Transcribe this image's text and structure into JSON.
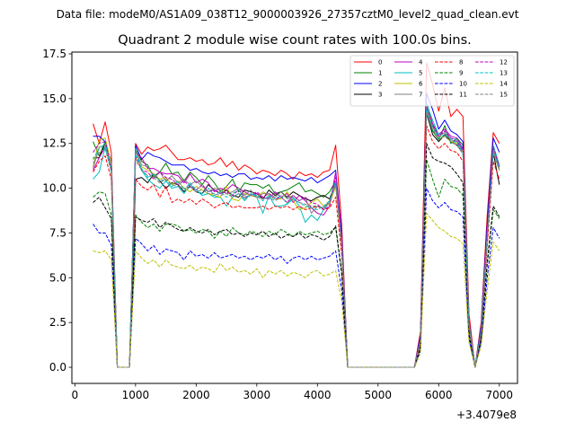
{
  "suptitle": "Data file: modeM0/AS1A09_038T12_9000003926_27357cztM0_level2_quad_clean.evt",
  "chart_data": {
    "type": "line",
    "title": "Quadrant 2 module wise count rates with 100.0s bins.",
    "xlabel": "",
    "ylabel": "",
    "x_offset_label": "+3.4079e8",
    "xlim": [
      -50,
      7300
    ],
    "ylim": [
      -0.9,
      17.6
    ],
    "x_ticks": [
      0,
      1000,
      2000,
      3000,
      4000,
      5000,
      6000,
      7000
    ],
    "y_ticks": [
      "0.0",
      "2.5",
      "5.0",
      "7.5",
      "10.0",
      "12.5",
      "15.0",
      "17.5"
    ],
    "grid": false,
    "legend_position": "top-right",
    "x": [
      300,
      400,
      500,
      600,
      700,
      800,
      900,
      1000,
      1100,
      1200,
      1300,
      1400,
      1500,
      1600,
      1700,
      1800,
      1900,
      2000,
      2100,
      2200,
      2300,
      2400,
      2500,
      2600,
      2700,
      2800,
      2900,
      3000,
      3100,
      3200,
      3300,
      3400,
      3500,
      3600,
      3700,
      3800,
      3900,
      4000,
      4100,
      4200,
      4300,
      4400,
      4500,
      4600,
      4700,
      4800,
      4900,
      5000,
      5100,
      5200,
      5300,
      5400,
      5500,
      5600,
      5700,
      5800,
      5900,
      6000,
      6100,
      6200,
      6300,
      6400,
      6500,
      6600,
      6700,
      6800,
      6900,
      7000
    ],
    "series": [
      {
        "name": "0",
        "color": "#ff0000",
        "dash": "solid",
        "values": [
          13.6,
          12.5,
          13.7,
          12.0,
          0,
          0,
          0,
          12.5,
          11.9,
          12.3,
          12.1,
          12.2,
          12.4,
          12.0,
          11.6,
          11.6,
          11.7,
          11.5,
          11.6,
          11.3,
          11.4,
          11.7,
          11.2,
          11.5,
          11.0,
          11.3,
          11.1,
          10.8,
          11.0,
          10.9,
          10.7,
          11.0,
          10.8,
          10.5,
          10.9,
          10.7,
          10.8,
          10.6,
          10.9,
          11.0,
          12.4,
          8.0,
          0,
          0,
          0,
          0,
          0,
          0,
          0,
          0,
          0,
          0,
          0,
          0,
          2.0,
          17.0,
          15.8,
          14.3,
          15.6,
          14.0,
          14.4,
          14.0,
          3.0,
          0,
          2.5,
          8.5,
          13.1,
          12.5
        ]
      },
      {
        "name": "1",
        "color": "#008000",
        "dash": "solid",
        "values": [
          12.6,
          11.8,
          12.6,
          11.0,
          0,
          0,
          0,
          12.2,
          11.5,
          11.3,
          10.6,
          10.9,
          11.4,
          10.8,
          10.9,
          10.4,
          10.9,
          10.6,
          10.2,
          10.7,
          10.3,
          9.8,
          10.1,
          10.5,
          9.8,
          10.3,
          10.2,
          10.2,
          10.0,
          10.2,
          9.7,
          9.8,
          9.9,
          10.1,
          10.3,
          9.8,
          9.9,
          9.7,
          9.5,
          9.8,
          10.4,
          7.0,
          0,
          0,
          0,
          0,
          0,
          0,
          0,
          0,
          0,
          0,
          0,
          0,
          1.5,
          14.5,
          13.2,
          12.7,
          13.5,
          12.5,
          12.8,
          12.4,
          2.5,
          0,
          2.0,
          7.5,
          12.0,
          11.0
        ]
      },
      {
        "name": "2",
        "color": "#0000ff",
        "dash": "solid",
        "values": [
          12.9,
          12.9,
          12.6,
          11.5,
          0,
          0,
          0,
          12.4,
          11.6,
          12.0,
          11.8,
          11.7,
          11.5,
          11.3,
          11.3,
          11.3,
          11.0,
          11.1,
          10.9,
          10.8,
          10.9,
          10.7,
          10.8,
          10.6,
          10.8,
          10.8,
          10.5,
          10.6,
          10.5,
          10.7,
          10.4,
          10.7,
          10.5,
          10.6,
          10.5,
          10.4,
          10.6,
          10.3,
          10.5,
          10.7,
          11.0,
          7.5,
          0,
          0,
          0,
          0,
          0,
          0,
          0,
          0,
          0,
          0,
          0,
          0,
          1.8,
          15.3,
          14.4,
          13.3,
          13.8,
          13.2,
          13.0,
          12.6,
          2.6,
          0,
          2.3,
          8.0,
          12.8,
          12.0
        ]
      },
      {
        "name": "3",
        "color": "#000000",
        "dash": "solid",
        "values": [
          11.7,
          11.7,
          12.5,
          11.0,
          0,
          0,
          0,
          10.5,
          10.6,
          10.3,
          10.8,
          10.4,
          10.0,
          10.3,
          10.2,
          9.8,
          10.1,
          9.8,
          9.7,
          10.2,
          9.9,
          9.7,
          9.9,
          9.6,
          9.5,
          9.9,
          9.8,
          9.7,
          9.4,
          9.9,
          9.6,
          9.8,
          9.5,
          9.8,
          9.6,
          9.4,
          9.3,
          9.5,
          9.6,
          9.4,
          10.3,
          6.8,
          0,
          0,
          0,
          0,
          0,
          0,
          0,
          0,
          0,
          0,
          0,
          0,
          1.4,
          14.2,
          13.0,
          12.6,
          13.0,
          12.6,
          12.4,
          12.0,
          2.4,
          0,
          2.0,
          7.2,
          12.0,
          10.2
        ]
      },
      {
        "name": "4",
        "color": "#bf00bf",
        "dash": "solid",
        "values": [
          11.0,
          11.7,
          12.3,
          11.2,
          0,
          0,
          0,
          12.0,
          11.7,
          11.1,
          11.1,
          10.9,
          10.8,
          10.8,
          10.7,
          10.3,
          10.8,
          10.3,
          10.5,
          10.3,
          9.8,
          10.0,
          9.9,
          10.2,
          10.0,
          9.8,
          9.6,
          9.7,
          9.5,
          9.4,
          9.8,
          9.5,
          9.7,
          9.2,
          9.6,
          9.3,
          8.9,
          8.6,
          8.5,
          9.0,
          10.9,
          7.2,
          0,
          0,
          0,
          0,
          0,
          0,
          0,
          0,
          0,
          0,
          0,
          0,
          1.6,
          14.8,
          13.6,
          13.0,
          13.3,
          12.9,
          12.8,
          12.2,
          2.6,
          0,
          2.1,
          7.6,
          12.2,
          11.2
        ]
      },
      {
        "name": "5",
        "color": "#00bfbf",
        "dash": "solid",
        "values": [
          10.5,
          10.9,
          12.3,
          11.0,
          0,
          0,
          0,
          12.2,
          11.0,
          10.5,
          10.2,
          10.0,
          10.4,
          10.0,
          10.1,
          9.7,
          10.2,
          9.9,
          9.6,
          9.7,
          9.5,
          9.5,
          9.0,
          9.5,
          9.7,
          9.3,
          9.7,
          9.5,
          8.6,
          9.6,
          9.0,
          9.0,
          9.1,
          9.5,
          9.0,
          8.1,
          8.5,
          8.2,
          8.8,
          9.2,
          10.4,
          6.9,
          0,
          0,
          0,
          0,
          0,
          0,
          0,
          0,
          0,
          0,
          0,
          0,
          1.5,
          14.7,
          13.8,
          13.0,
          13.1,
          12.8,
          12.7,
          12.1,
          2.5,
          0,
          2.0,
          7.3,
          12.4,
          11.3
        ]
      },
      {
        "name": "6",
        "color": "#bfbf00",
        "dash": "solid",
        "values": [
          11.2,
          12.7,
          12.8,
          11.4,
          0,
          0,
          0,
          11.7,
          11.2,
          11.0,
          10.8,
          10.5,
          10.6,
          10.2,
          10.4,
          10.0,
          9.8,
          10.1,
          9.9,
          9.7,
          9.6,
          9.5,
          10.1,
          9.4,
          9.3,
          9.7,
          9.6,
          9.5,
          9.8,
          9.6,
          9.4,
          9.4,
          9.8,
          9.3,
          8.8,
          8.9,
          9.2,
          9.4,
          9.0,
          9.1,
          10.1,
          6.9,
          0,
          0,
          0,
          0,
          0,
          0,
          0,
          0,
          0,
          0,
          0,
          0,
          1.5,
          14.3,
          13.4,
          12.8,
          12.9,
          12.6,
          12.5,
          12.0,
          2.4,
          0,
          2.0,
          7.4,
          12.0,
          11.0
        ]
      },
      {
        "name": "7",
        "color": "#808080",
        "dash": "solid",
        "values": [
          11.1,
          12.3,
          12.4,
          11.2,
          0,
          0,
          0,
          12.1,
          11.3,
          11.2,
          10.7,
          10.9,
          10.4,
          10.7,
          10.3,
          10.5,
          10.2,
          10.4,
          10.1,
          9.8,
          10.0,
          9.9,
          9.7,
          9.8,
          10.0,
          9.6,
          9.9,
          9.5,
          9.7,
          9.7,
          9.5,
          9.8,
          9.4,
          9.6,
          9.3,
          9.5,
          8.6,
          9.0,
          8.9,
          9.3,
          10.2,
          7.0,
          0,
          0,
          0,
          0,
          0,
          0,
          0,
          0,
          0,
          0,
          0,
          0,
          1.5,
          14.6,
          13.5,
          12.9,
          13.1,
          12.7,
          12.6,
          12.1,
          2.5,
          0,
          2.0,
          7.4,
          12.2,
          11.1
        ]
      },
      {
        "name": "8",
        "color": "#ff0000",
        "dash": "dashed",
        "values": [
          10.9,
          11.5,
          11.8,
          10.5,
          0,
          0,
          0,
          10.5,
          10.1,
          9.9,
          10.2,
          9.5,
          10.1,
          9.2,
          9.4,
          9.2,
          9.4,
          9.1,
          9.4,
          9.2,
          8.9,
          9.1,
          9.2,
          8.9,
          9.0,
          8.9,
          8.9,
          8.9,
          9.0,
          8.8,
          9.0,
          8.9,
          9.0,
          8.8,
          9.0,
          8.8,
          8.9,
          9.0,
          8.8,
          8.9,
          9.5,
          6.3,
          0,
          0,
          0,
          0,
          0,
          0,
          0,
          0,
          0,
          0,
          0,
          0,
          1.3,
          13.5,
          12.6,
          12.2,
          12.5,
          12.1,
          12.0,
          11.5,
          2.2,
          0,
          1.8,
          6.8,
          11.5,
          10.5
        ]
      },
      {
        "name": "9",
        "color": "#008000",
        "dash": "dashed",
        "values": [
          9.5,
          9.8,
          9.7,
          8.5,
          0,
          0,
          0,
          8.5,
          8.1,
          7.8,
          8.0,
          7.6,
          8.0,
          8.0,
          7.9,
          7.6,
          7.7,
          7.5,
          7.7,
          7.6,
          7.2,
          7.6,
          7.3,
          7.8,
          7.5,
          7.4,
          7.6,
          7.5,
          7.3,
          7.6,
          7.4,
          7.7,
          7.5,
          7.3,
          7.6,
          7.4,
          7.5,
          7.6,
          7.4,
          7.5,
          7.8,
          5.2,
          0,
          0,
          0,
          0,
          0,
          0,
          0,
          0,
          0,
          0,
          0,
          0,
          1.1,
          11.6,
          10.5,
          9.5,
          10.5,
          10.1,
          10.0,
          9.6,
          1.8,
          0,
          1.5,
          5.7,
          8.8,
          8.3
        ]
      },
      {
        "name": "10",
        "color": "#0000ff",
        "dash": "dashed",
        "values": [
          8.0,
          7.5,
          7.5,
          6.8,
          0,
          0,
          0,
          7.2,
          6.9,
          6.5,
          6.8,
          6.3,
          6.6,
          6.5,
          6.4,
          6.0,
          6.5,
          6.2,
          6.3,
          6.1,
          6.4,
          6.1,
          6.2,
          6.3,
          6.1,
          6.2,
          6.0,
          6.2,
          6.1,
          6.3,
          6.0,
          6.2,
          5.8,
          6.1,
          6.2,
          6.0,
          6.2,
          6.0,
          6.1,
          6.2,
          6.5,
          4.3,
          0,
          0,
          0,
          0,
          0,
          0,
          0,
          0,
          0,
          0,
          0,
          0,
          0.9,
          10.0,
          9.3,
          8.9,
          9.2,
          8.8,
          8.7,
          8.4,
          1.6,
          0,
          1.4,
          5.0,
          7.8,
          7.2
        ]
      },
      {
        "name": "11",
        "color": "#000000",
        "dash": "dashed",
        "values": [
          9.2,
          9.5,
          8.9,
          8.3,
          0,
          0,
          0,
          8.4,
          8.2,
          8.1,
          8.3,
          7.8,
          8.1,
          7.9,
          7.7,
          7.6,
          7.8,
          7.6,
          7.5,
          7.7,
          7.4,
          7.6,
          7.7,
          7.4,
          7.5,
          7.3,
          7.5,
          7.4,
          7.6,
          7.3,
          7.5,
          7.2,
          7.4,
          7.3,
          7.5,
          7.2,
          7.4,
          7.3,
          7.1,
          7.3,
          7.9,
          5.3,
          0,
          0,
          0,
          0,
          0,
          0,
          0,
          0,
          0,
          0,
          0,
          0,
          1.1,
          12.5,
          11.7,
          11.5,
          11.4,
          11.2,
          10.8,
          10.3,
          1.9,
          0,
          1.6,
          5.9,
          9.0,
          8.4
        ]
      },
      {
        "name": "12",
        "color": "#bf00bf",
        "dash": "dashed",
        "values": [
          12.0,
          12.5,
          12.6,
          11.1,
          0,
          0,
          0,
          11.8,
          11.0,
          10.9,
          10.5,
          10.9,
          10.6,
          10.5,
          10.2,
          10.4,
          10.1,
          9.9,
          10.2,
          9.8,
          9.9,
          9.7,
          9.8,
          9.6,
          9.9,
          9.5,
          9.6,
          9.8,
          9.5,
          9.7,
          9.4,
          9.5,
          9.2,
          9.6,
          9.3,
          9.5,
          9.2,
          9.1,
          8.8,
          9.0,
          10.6,
          7.0,
          0,
          0,
          0,
          0,
          0,
          0,
          0,
          0,
          0,
          0,
          0,
          0,
          1.6,
          14.5,
          13.5,
          12.9,
          13.2,
          12.8,
          12.6,
          12.1,
          2.5,
          0,
          2.0,
          7.5,
          12.3,
          11.2
        ]
      },
      {
        "name": "13",
        "color": "#00bfbf",
        "dash": "dashed",
        "values": [
          11.6,
          12.2,
          12.5,
          11.0,
          0,
          0,
          0,
          11.9,
          11.1,
          10.6,
          10.8,
          10.4,
          10.5,
          10.1,
          10.4,
          9.9,
          10.3,
          9.9,
          9.7,
          10.0,
          9.6,
          9.8,
          9.5,
          9.7,
          9.9,
          9.4,
          9.7,
          9.6,
          9.3,
          9.6,
          9.4,
          9.6,
          9.1,
          9.4,
          9.2,
          9.0,
          8.9,
          8.8,
          9.0,
          9.3,
          10.4,
          6.9,
          0,
          0,
          0,
          0,
          0,
          0,
          0,
          0,
          0,
          0,
          0,
          0,
          1.5,
          14.4,
          13.4,
          12.8,
          13.0,
          12.7,
          12.5,
          12.0,
          2.4,
          0,
          2.0,
          7.3,
          12.1,
          11.1
        ]
      },
      {
        "name": "14",
        "color": "#bfbf00",
        "dash": "dashed",
        "values": [
          6.5,
          6.4,
          6.5,
          6.0,
          0,
          0,
          0,
          6.5,
          6.1,
          5.8,
          6.0,
          5.6,
          6.0,
          5.7,
          5.6,
          5.5,
          5.7,
          5.4,
          5.6,
          5.5,
          5.3,
          5.8,
          5.4,
          5.6,
          5.3,
          5.4,
          5.2,
          5.5,
          5.0,
          5.4,
          5.2,
          5.4,
          5.1,
          5.3,
          5.2,
          5.0,
          5.3,
          5.4,
          5.1,
          5.2,
          5.4,
          3.7,
          0,
          0,
          0,
          0,
          0,
          0,
          0,
          0,
          0,
          0,
          0,
          0,
          0.8,
          8.6,
          8.2,
          7.8,
          7.6,
          7.3,
          7.2,
          6.9,
          1.4,
          0,
          1.2,
          4.3,
          7.0,
          6.5
        ]
      },
      {
        "name": "15",
        "color": "#808080",
        "dash": "dashed",
        "values": [
          11.4,
          12.0,
          12.2,
          10.9,
          0,
          0,
          0,
          11.6,
          11.0,
          10.7,
          10.6,
          10.3,
          10.5,
          10.2,
          10.1,
          10.0,
          10.1,
          9.8,
          9.9,
          9.7,
          9.7,
          9.6,
          9.7,
          9.5,
          9.7,
          9.4,
          9.6,
          9.5,
          9.4,
          9.5,
          9.3,
          9.5,
          9.2,
          9.4,
          9.2,
          9.1,
          9.0,
          9.0,
          8.9,
          9.2,
          10.2,
          6.8,
          0,
          0,
          0,
          0,
          0,
          0,
          0,
          0,
          0,
          0,
          0,
          0,
          1.5,
          14.2,
          13.3,
          12.7,
          12.9,
          12.6,
          12.4,
          11.9,
          2.4,
          0,
          2.0,
          7.2,
          12.0,
          11.0
        ]
      }
    ]
  }
}
